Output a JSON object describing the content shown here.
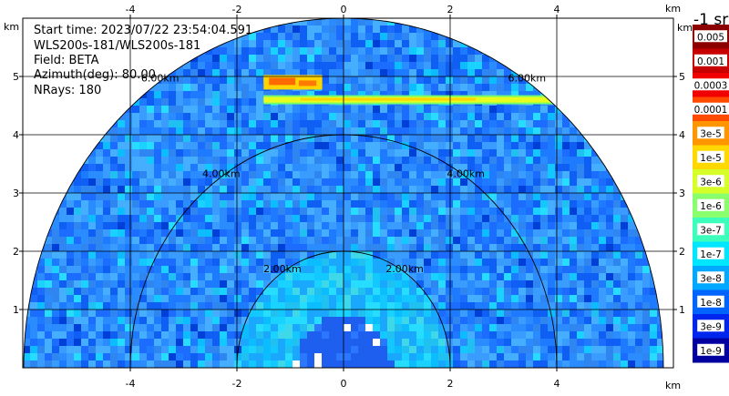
{
  "info": {
    "start_time": "Start time: 2023/07/22 23:54:04.591",
    "instrument": "WLS200s-181/WLS200s-181",
    "field": "Field: BETA",
    "azimuth": "Azimuth(deg): 80.00",
    "nrays": "NRays: 180"
  },
  "chart_data": {
    "type": "heatmap",
    "projection": "RHI (range-height, polar half-disk)",
    "xunit": "km",
    "yunit": "km",
    "xlim": [
      -6.0,
      6.1
    ],
    "ylim": [
      0,
      5.5
    ],
    "x_ticks": [
      -4,
      -2,
      0,
      2,
      4
    ],
    "y_ticks": [
      1,
      2,
      3,
      4,
      5
    ],
    "grid": true,
    "range_rings_km": [
      2.0,
      4.0,
      6.0
    ],
    "range_ring_labels": [
      "2.00km",
      "4.00km",
      "6.00km"
    ],
    "max_range_km": 6.0,
    "features": [
      {
        "name": "cloud-base-layer",
        "height_km": 4.6,
        "x_from_km": -1.5,
        "x_to_km": 4.0
      },
      {
        "name": "cloud-patch",
        "height_km": 4.9,
        "x_from_km": -1.5,
        "x_to_km": -0.4
      }
    ],
    "colorbar": {
      "title": "-1 sr",
      "labels": [
        "0.005",
        "0.001",
        "0.0003",
        "0.0001",
        "3e-5",
        "1e-5",
        "3e-6",
        "1e-6",
        "3e-7",
        "1e-7",
        "3e-8",
        "1e-8",
        "3e-9",
        "1e-9"
      ],
      "colors": [
        "#8c0000",
        "#c60000",
        "#f00000",
        "#ff4a00",
        "#ff9600",
        "#ffd800",
        "#d6ff2a",
        "#8aff6e",
        "#3cffbc",
        "#00e6ff",
        "#00a8ff",
        "#0064ff",
        "#0026ee",
        "#0000a0"
      ]
    }
  }
}
